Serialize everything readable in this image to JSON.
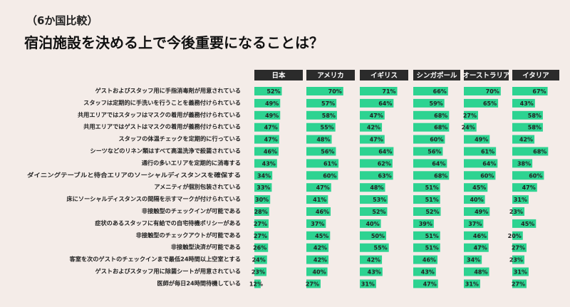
{
  "header": {
    "subtitle": "（6か国比較）",
    "title": "宿泊施設を決める上で今後重要になることは？"
  },
  "colors": {
    "bar": "#2dd391",
    "header_bg": "#2b2b2b",
    "background": "#f4ece8"
  },
  "chart_data": {
    "type": "bar",
    "title": "宿泊施設を決める上で今後重要になることは？",
    "subtitle": "（6か国比較）",
    "unit": "%",
    "categories": [
      "ゲストおよびスタッフ用に手指消毒剤が用意されている",
      "スタッフは定期的に手洗いを行うことを義務付けられている",
      "共用エリアではスタッフはマスクの着用が義務付けられている",
      "共用エリアではゲストはマスクの着用が義務付けられている",
      "スタッフの体温チェックを定期的に行っている",
      "シーツなどのリネン類はすべて高温洗浄で殺菌されている",
      "通行の多いエリアを定期的に消毒する",
      "ダイニングテーブルと待合エリアのソーシャルディスタンスを確保する",
      "アメニティが個別包装されている",
      "床にソーシャルディスタンスの間隔を示すマークが付けられている",
      "非接触型のチェックインが可能である",
      "症状のあるスタッフに有給での自宅待機ポリシーがある",
      "非接触型のチェックアウトが可能である",
      "非接触型決済が可能である",
      "客室を次のゲストのチェックインまで最低24時間以上空室とする",
      "ゲストおよびスタッフ用に除菌シートが用意されている",
      "医師が毎日24時間待機している"
    ],
    "series": [
      {
        "name": "日本",
        "values": [
          52,
          49,
          49,
          47,
          47,
          46,
          43,
          34,
          33,
          30,
          28,
          27,
          27,
          26,
          24,
          23,
          12
        ]
      },
      {
        "name": "アメリカ",
        "values": [
          70,
          57,
          58,
          55,
          48,
          56,
          61,
          60,
          47,
          41,
          46,
          37,
          45,
          42,
          42,
          40,
          27
        ]
      },
      {
        "name": "イギリス",
        "values": [
          71,
          64,
          47,
          42,
          47,
          64,
          62,
          63,
          48,
          53,
          52,
          40,
          50,
          55,
          42,
          43,
          31
        ]
      },
      {
        "name": "シンガポール",
        "values": [
          66,
          59,
          68,
          68,
          60,
          56,
          64,
          68,
          51,
          51,
          52,
          39,
          51,
          51,
          46,
          43,
          47
        ]
      },
      {
        "name": "オーストラリア",
        "values": [
          70,
          65,
          27,
          24,
          49,
          61,
          64,
          60,
          45,
          40,
          49,
          37,
          46,
          47,
          34,
          48,
          31
        ]
      },
      {
        "name": "イタリア",
        "values": [
          67,
          43,
          58,
          58,
          42,
          68,
          38,
          60,
          47,
          31,
          23,
          45,
          20,
          27,
          23,
          31,
          27
        ]
      }
    ],
    "xlim": [
      0,
      100
    ]
  }
}
